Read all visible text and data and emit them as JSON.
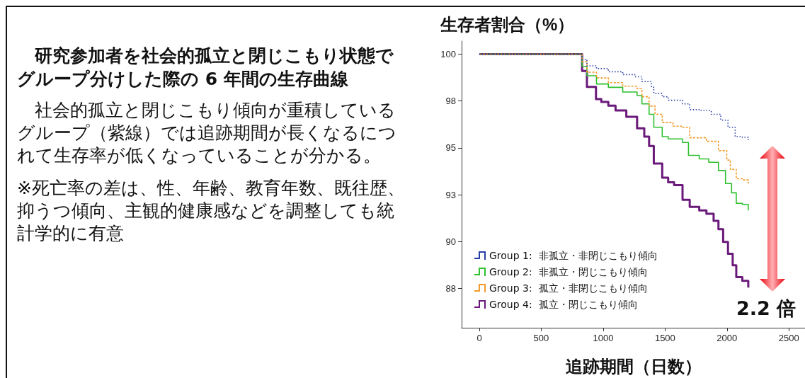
{
  "chart_data": {
    "type": "step",
    "title": "研究参加者を社会的孤立と閉じこもり状態でグループ分けした際の 6 年間の生存曲線",
    "annotations": [
      "社会的孤立と閉じこもり傾向が重積しているグループ（紫線）では追跡期間が長くなるにつれて生存率が低くなっていることが分かる。",
      "※死亡率の差は、性、年齢、教育年数、既往歴、抑うつ傾向、主観的健康感などを調整しても統計学的に有意",
      "2.2 倍"
    ],
    "xlabel": "追跡期間（日数）",
    "ylabel": "生存者割合（%）",
    "xlim": [
      -143,
      2630
    ],
    "xticks": [
      0,
      500,
      1000,
      1500,
      2000,
      2500
    ],
    "ylim": [
      85.4,
      100.7
    ],
    "yticks": [
      {
        "value": 87.5,
        "label": "88"
      },
      90,
      {
        "value": 92.5,
        "label": "93"
      },
      {
        "value": 97.5,
        "label": "98"
      },
      95,
      100
    ],
    "grid": false,
    "legend": "bottom left",
    "series": [
      {
        "name": "Group 1:  非孤立・非閉じこもり傾向",
        "color": "#2b3fa8",
        "line_style": "dotted",
        "x": [
          0,
          786,
          830,
          869,
          946,
          1042,
          1158,
          1255,
          1313,
          1390,
          1409,
          1477,
          1525,
          1641,
          1699,
          1776,
          1873,
          1950,
          2008,
          2066,
          2124,
          2172
        ],
        "values": [
          100,
          100,
          99.73,
          99.38,
          99.23,
          99.06,
          98.91,
          98.79,
          98.54,
          98.23,
          97.91,
          97.73,
          97.54,
          97.35,
          97.04,
          97.0,
          96.79,
          96.48,
          96.1,
          95.6,
          95.56,
          95.41
        ]
      },
      {
        "name": "Group 2:  非孤立・閉じこもり傾向",
        "color": "#2ec02e",
        "line_style": "solid",
        "x": [
          0,
          786,
          830,
          869,
          946,
          1042,
          1158,
          1274,
          1313,
          1371,
          1409,
          1477,
          1525,
          1641,
          1689,
          1776,
          1853,
          1931,
          1988,
          2037,
          2075,
          2124,
          2172
        ],
        "values": [
          100,
          100,
          99.35,
          98.85,
          98.41,
          98.23,
          97.98,
          97.79,
          97.35,
          96.79,
          96.1,
          95.6,
          95.48,
          95.29,
          94.6,
          94.41,
          94.23,
          93.79,
          93.1,
          92.6,
          92.04,
          91.98,
          91.66
        ]
      },
      {
        "name": "Group 3:  孤立・非閉じこもり傾向",
        "color": "#f39a2a",
        "line_style": "dashed",
        "x": [
          0,
          786,
          830,
          869,
          946,
          1042,
          1158,
          1274,
          1313,
          1371,
          1419,
          1477,
          1564,
          1641,
          1699,
          1834,
          1931,
          1998,
          2027,
          2075,
          2124,
          2172
        ],
        "values": [
          100,
          100,
          99.6,
          99.04,
          98.73,
          98.48,
          98.29,
          98.16,
          97.73,
          97.23,
          96.79,
          96.35,
          96.16,
          96.1,
          95.54,
          95.35,
          94.85,
          94.35,
          93.85,
          93.35,
          93.29,
          93.1
        ]
      },
      {
        "name": "Group 4:  孤立・閉じこもり傾向",
        "color": "#6a1a7a",
        "line_style": "solid",
        "x": [
          0,
          786,
          830,
          869,
          942,
          985,
          1042,
          1100,
          1187,
          1274,
          1332,
          1371,
          1409,
          1477,
          1525,
          1573,
          1641,
          1699,
          1776,
          1834,
          1892,
          1931,
          1969,
          2008,
          2046,
          2075,
          2124,
          2172
        ],
        "values": [
          100,
          100,
          99.1,
          98.25,
          97.6,
          97.45,
          97.25,
          97.0,
          96.66,
          96.04,
          95.6,
          95.1,
          94.16,
          93.41,
          93.16,
          93.01,
          92.23,
          91.85,
          91.66,
          91.48,
          91.1,
          90.66,
          89.98,
          89.35,
          88.73,
          88.1,
          87.9,
          87.54
        ]
      }
    ]
  }
}
